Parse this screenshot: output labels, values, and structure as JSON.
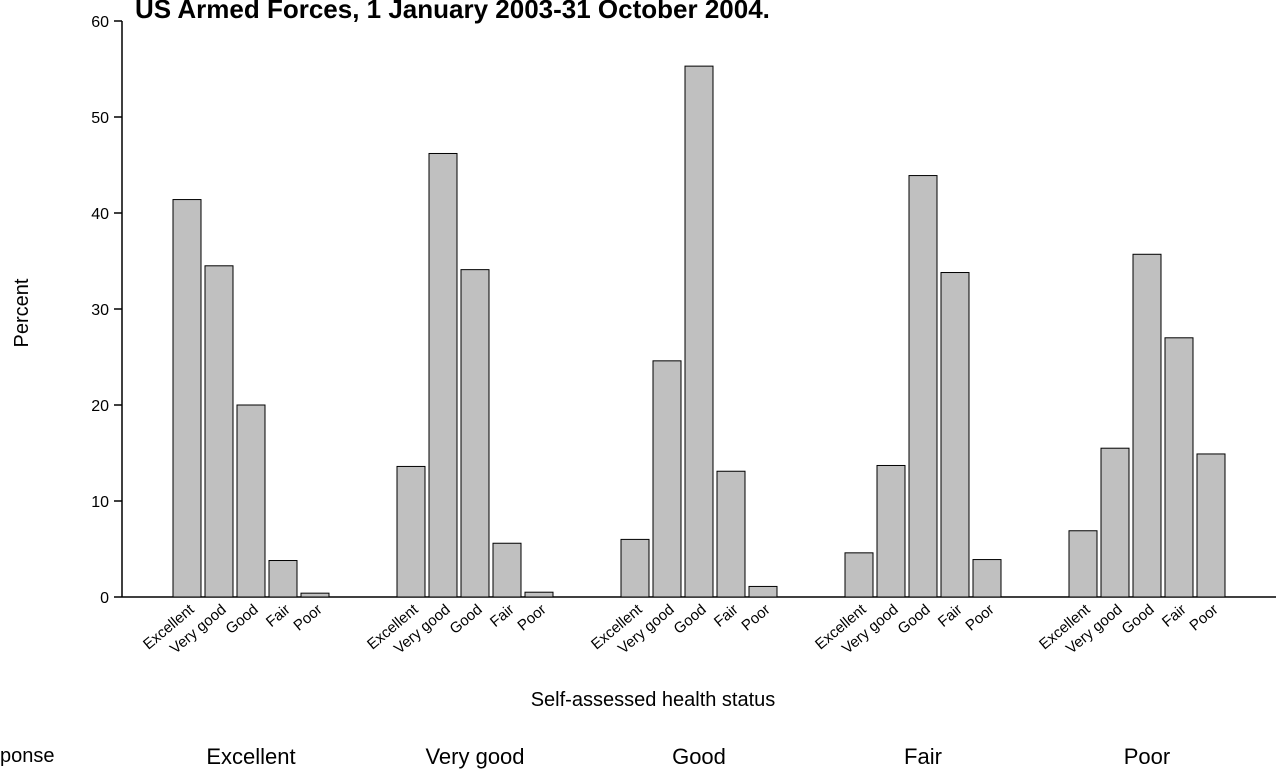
{
  "chart_data": {
    "type": "bar",
    "title": "US Armed Forces, 1 January 2003-31 October 2004.",
    "ylabel": "Percent",
    "xlabel": "Self-assessed health status",
    "ylim": [
      0,
      60
    ],
    "yticks": [
      0,
      10,
      20,
      30,
      40,
      50,
      60
    ],
    "categories": [
      "Excellent",
      "Very good",
      "Good",
      "Fair",
      "Poor"
    ],
    "bar_color": "#c0c0c0",
    "bar_stroke": "#000000",
    "row_label": "ponse",
    "groups": [
      {
        "name": "Excellent",
        "values": [
          41.4,
          34.5,
          20.0,
          3.8,
          0.4
        ]
      },
      {
        "name": "Very good",
        "values": [
          13.6,
          46.2,
          34.1,
          5.6,
          0.5
        ]
      },
      {
        "name": "Good",
        "values": [
          6.0,
          24.6,
          55.3,
          13.1,
          1.1
        ]
      },
      {
        "name": "Fair",
        "values": [
          4.6,
          13.7,
          43.9,
          33.8,
          3.9
        ]
      },
      {
        "name": "Poor",
        "values": [
          6.9,
          15.5,
          35.7,
          27.0,
          14.9
        ]
      }
    ]
  }
}
